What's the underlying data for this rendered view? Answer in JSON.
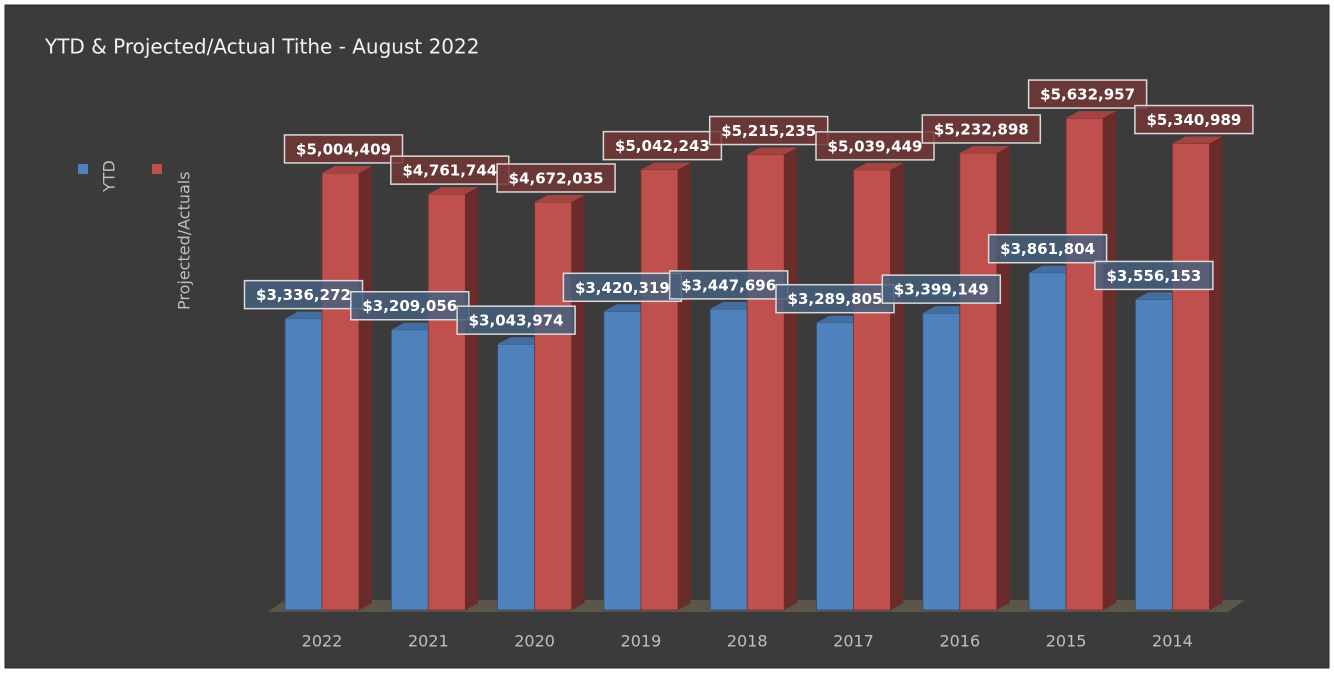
{
  "chart_data": {
    "type": "bar3d",
    "title": "YTD & Projected/Actual Tithe - August 2022",
    "categories": [
      "2022",
      "2021",
      "2020",
      "2019",
      "2018",
      "2017",
      "2016",
      "2015",
      "2014"
    ],
    "series": [
      {
        "name": "YTD",
        "color": "#4f81bd",
        "values": [
          3336272,
          3209056,
          3043974,
          3420319,
          3447696,
          3289805,
          3399149,
          3861804,
          3556153
        ],
        "value_labels": [
          "$3,336,272",
          "$3,209,056",
          "$3,043,974",
          "$3,420,319",
          "$3,447,696",
          "$3,289,805",
          "$3,399,149",
          "$3,861,804",
          "$3,556,153"
        ]
      },
      {
        "name": "Projected/Actuals",
        "color": "#c0504d",
        "values": [
          5004409,
          4761744,
          4672035,
          5042243,
          5215235,
          5039449,
          5232898,
          5632957,
          5340989
        ],
        "value_labels": [
          "$5,004,409",
          "$4,761,744",
          "$4,672,035",
          "$5,042,243",
          "$5,215,235",
          "$5,039,449",
          "$5,232,898",
          "$5,632,957",
          "$5,340,989"
        ]
      }
    ],
    "ylim": [
      0,
      6000000
    ],
    "legend": "left"
  }
}
